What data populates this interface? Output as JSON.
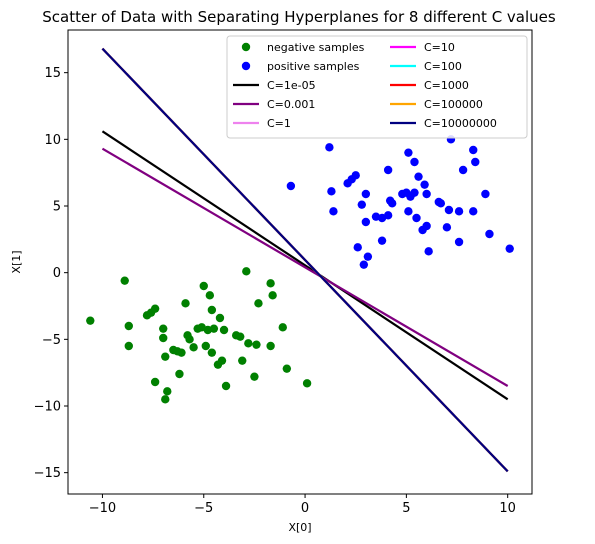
{
  "chart_data": {
    "type": "scatter",
    "title": "Scatter of Data with Separating Hyperplanes for 8 different C values",
    "xlabel": "X[0]",
    "ylabel": "X[1]",
    "xlim": [
      -11.7,
      11.2
    ],
    "ylim": [
      -16.6,
      18.2
    ],
    "xticks": [
      -10,
      -5,
      0,
      5,
      10
    ],
    "yticks": [
      -15,
      -10,
      -5,
      0,
      5,
      10,
      15
    ],
    "grid": false,
    "legend_position": "top-right",
    "legend_columns": 2,
    "scatter_series": [
      {
        "name": "negative samples",
        "color": "#008000",
        "points": [
          [
            -10.6,
            -3.6
          ],
          [
            -8.9,
            -0.6
          ],
          [
            -8.7,
            -4.0
          ],
          [
            -8.7,
            -5.5
          ],
          [
            -7.8,
            -3.2
          ],
          [
            -7.6,
            -3.0
          ],
          [
            -7.4,
            -2.7
          ],
          [
            -7.4,
            -8.2
          ],
          [
            -7.0,
            -4.2
          ],
          [
            -7.0,
            -4.9
          ],
          [
            -6.9,
            -6.3
          ],
          [
            -6.9,
            -9.5
          ],
          [
            -6.8,
            -8.9
          ],
          [
            -6.5,
            -5.8
          ],
          [
            -6.3,
            -5.9
          ],
          [
            -6.2,
            -7.6
          ],
          [
            -6.1,
            -6.0
          ],
          [
            -5.9,
            -2.3
          ],
          [
            -5.8,
            -4.7
          ],
          [
            -5.7,
            -5.0
          ],
          [
            -5.5,
            -5.6
          ],
          [
            -5.3,
            -4.2
          ],
          [
            -5.1,
            -4.1
          ],
          [
            -5.0,
            -1.0
          ],
          [
            -4.9,
            -5.5
          ],
          [
            -4.8,
            -4.3
          ],
          [
            -4.7,
            -1.7
          ],
          [
            -4.6,
            -6.0
          ],
          [
            -4.6,
            -2.8
          ],
          [
            -4.5,
            -4.2
          ],
          [
            -4.3,
            -6.9
          ],
          [
            -4.2,
            -3.4
          ],
          [
            -4.1,
            -6.6
          ],
          [
            -4.0,
            -4.3
          ],
          [
            -3.9,
            -8.5
          ],
          [
            -3.4,
            -4.7
          ],
          [
            -3.2,
            -4.8
          ],
          [
            -3.1,
            -6.6
          ],
          [
            -2.9,
            0.1
          ],
          [
            -2.8,
            -5.3
          ],
          [
            -2.5,
            -7.8
          ],
          [
            -2.4,
            -5.4
          ],
          [
            -2.3,
            -2.3
          ],
          [
            -1.7,
            -0.8
          ],
          [
            -1.7,
            -5.5
          ],
          [
            -1.6,
            -1.7
          ],
          [
            -1.1,
            -4.1
          ],
          [
            -0.9,
            -7.2
          ],
          [
            0.1,
            -8.3
          ]
        ]
      },
      {
        "name": "positive samples",
        "color": "#0000ff",
        "points": [
          [
            -0.7,
            6.5
          ],
          [
            1.2,
            9.4
          ],
          [
            1.3,
            6.1
          ],
          [
            1.4,
            4.6
          ],
          [
            2.1,
            6.7
          ],
          [
            2.3,
            7.0
          ],
          [
            2.5,
            7.3
          ],
          [
            2.6,
            1.9
          ],
          [
            2.8,
            5.1
          ],
          [
            2.9,
            0.6
          ],
          [
            3.0,
            3.8
          ],
          [
            3.0,
            5.9
          ],
          [
            3.1,
            1.2
          ],
          [
            3.5,
            4.2
          ],
          [
            3.8,
            4.1
          ],
          [
            3.8,
            2.4
          ],
          [
            4.1,
            4.3
          ],
          [
            4.1,
            7.7
          ],
          [
            4.2,
            5.4
          ],
          [
            4.3,
            5.2
          ],
          [
            4.8,
            5.9
          ],
          [
            5.0,
            6.0
          ],
          [
            5.1,
            9.0
          ],
          [
            5.1,
            4.6
          ],
          [
            5.2,
            5.7
          ],
          [
            5.4,
            8.3
          ],
          [
            5.4,
            6.0
          ],
          [
            5.5,
            4.1
          ],
          [
            5.6,
            7.2
          ],
          [
            5.8,
            3.2
          ],
          [
            5.9,
            6.6
          ],
          [
            6.0,
            5.9
          ],
          [
            6.0,
            3.5
          ],
          [
            6.1,
            1.6
          ],
          [
            6.6,
            5.3
          ],
          [
            6.7,
            5.2
          ],
          [
            7.0,
            3.4
          ],
          [
            7.1,
            4.7
          ],
          [
            7.2,
            10.0
          ],
          [
            7.6,
            4.6
          ],
          [
            7.6,
            2.3
          ],
          [
            7.8,
            7.7
          ],
          [
            8.3,
            9.2
          ],
          [
            8.3,
            4.6
          ],
          [
            8.4,
            8.3
          ],
          [
            8.9,
            5.9
          ],
          [
            9.1,
            2.9
          ],
          [
            10.1,
            1.8
          ]
        ]
      }
    ],
    "line_series": [
      {
        "name": "C=1e-05",
        "color": "#000000",
        "x": [
          -10,
          10
        ],
        "y": [
          10.6,
          -9.5
        ]
      },
      {
        "name": "C=0.001",
        "color": "#800080",
        "x": [
          -10,
          10
        ],
        "y": [
          9.3,
          -8.5
        ]
      },
      {
        "name": "C=1",
        "color": "#ee82ee",
        "x": [
          -10,
          10
        ],
        "y": [
          16.8,
          -14.9
        ]
      },
      {
        "name": "C=10",
        "color": "#ff00ff",
        "x": [
          -10,
          10
        ],
        "y": [
          16.8,
          -14.9
        ]
      },
      {
        "name": "C=100",
        "color": "#00ffff",
        "x": [
          -10,
          10
        ],
        "y": [
          16.8,
          -14.9
        ]
      },
      {
        "name": "C=1000",
        "color": "#ff0000",
        "x": [
          -10,
          10
        ],
        "y": [
          16.8,
          -14.9
        ]
      },
      {
        "name": "C=100000",
        "color": "#ffa500",
        "x": [
          -10,
          10
        ],
        "y": [
          16.8,
          -14.9
        ]
      },
      {
        "name": "C=10000000",
        "color": "#000080",
        "x": [
          -10,
          10
        ],
        "y": [
          16.8,
          -14.9
        ]
      }
    ]
  }
}
